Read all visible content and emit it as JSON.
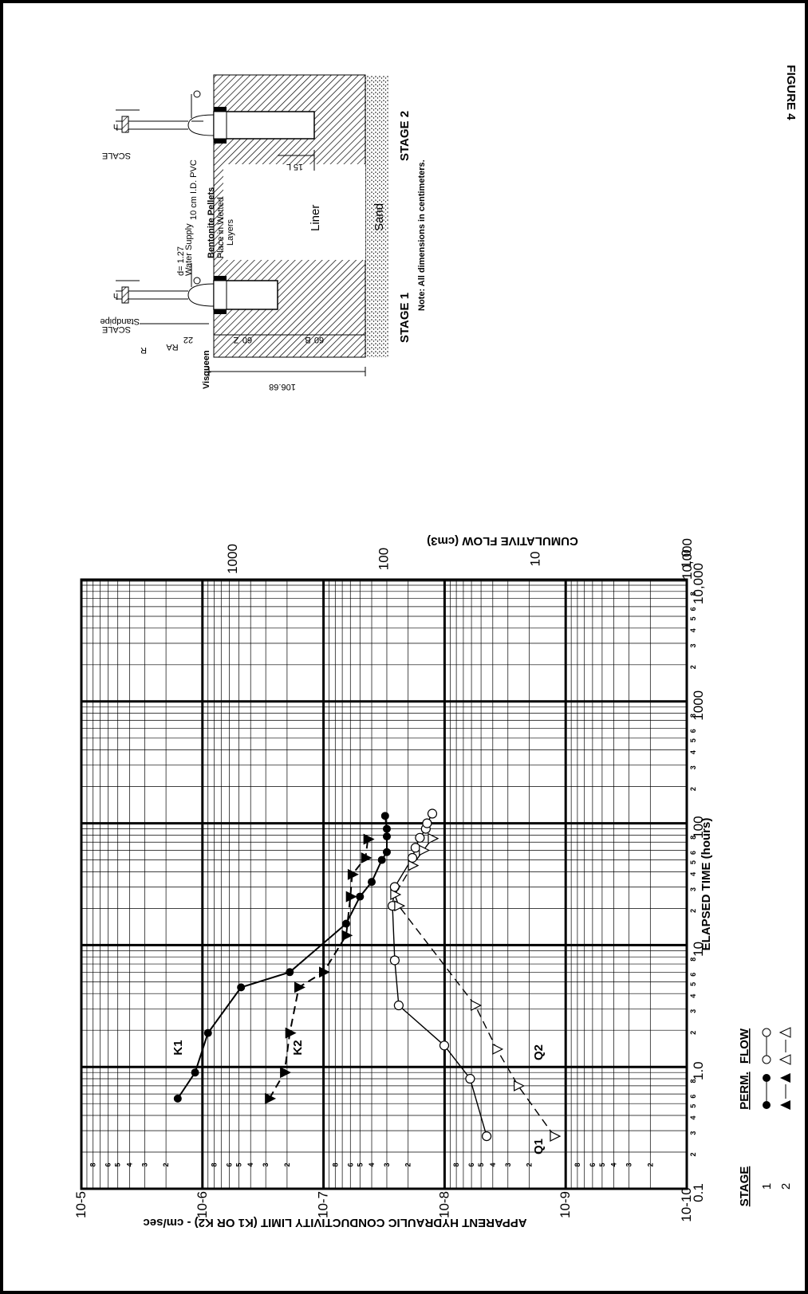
{
  "figure": {
    "label": "FIGURE 4",
    "legend": {
      "col_stage": "STAGE",
      "col_perm": "PERM.",
      "col_flow": "FLOW",
      "rows": [
        {
          "stage": "1",
          "perm_marker": "filled-circle-solid-line",
          "flow_marker": "open-circle-solid-line"
        },
        {
          "stage": "2",
          "perm_marker": "filled-triangle-dashed-line",
          "flow_marker": "open-triangle-dashed-line"
        }
      ]
    },
    "diagram": {
      "note": "Note:  All dimensions in centimeters.",
      "labels": {
        "visqueen": "Visqueen",
        "standpipe": "Standpipe",
        "scale": "SCALE",
        "water_supply": "Water Supply",
        "d": "d= 1.27",
        "bentonite": "Bentonite Pellets",
        "place_in": "Place in Wetted",
        "layers": "Layers",
        "pvc": "10 cm I.D. PVC",
        "liner": "Liner",
        "sand": "Sand",
        "stage1": "STAGE  1",
        "stage2": "STAGE  2",
        "dim_total": "106.68",
        "dim_22": "22",
        "dim_60a": "60",
        "dim_60b": "60",
        "dim_15": "15",
        "R": "R",
        "RA": "RA",
        "Z": "Z",
        "B": "B",
        "L": "L",
        "h": "h"
      }
    }
  },
  "chart_data": {
    "type": "scatter",
    "x_axis": {
      "label": "ELAPSED TIME (hours)",
      "scale": "log",
      "range": [
        0.1,
        10000
      ],
      "major_labels": [
        "0.1",
        "1.0",
        "10",
        "100",
        "1000",
        "10,000"
      ],
      "minor_labels": [
        "2",
        "3",
        "4",
        "5",
        "6",
        "8"
      ]
    },
    "y_axis": {
      "label": "APPARENT HYDRAULIC CONDUCTIVITY LIMIT  (K1 OR K2) - cm/sec",
      "scale": "log",
      "range": [
        1e-10,
        1e-05
      ],
      "major_labels": [
        "10-5",
        "10-6",
        "10-7",
        "10-8",
        "10-9",
        "10-10"
      ],
      "minor_labels": [
        "2",
        "3",
        "4",
        "5",
        "6",
        "8"
      ]
    },
    "y2_axis": {
      "label": "CUMULATIVE FLOW (cm3)",
      "scale": "log",
      "range": [
        1,
        10000
      ],
      "major_labels": [
        "1000",
        "100",
        "10",
        "1.0"
      ],
      "range_label": "10,000"
    },
    "grid": true,
    "series": [
      {
        "name": "K1",
        "axis": "y",
        "marker": "filled-circle",
        "line": "solid",
        "x": [
          0.55,
          0.9,
          1.9,
          4.5,
          6,
          15,
          25,
          33,
          50,
          58,
          78,
          90,
          115
        ],
        "y": [
          1.6e-06,
          1.15e-06,
          9e-07,
          4.8e-07,
          1.9e-07,
          6.5e-08,
          5e-08,
          4e-08,
          3.3e-08,
          3e-08,
          3e-08,
          3e-08,
          3.1e-08
        ]
      },
      {
        "name": "K2",
        "axis": "y",
        "marker": "filled-triangle",
        "line": "dashed",
        "x": [
          0.55,
          0.9,
          1.9,
          4.5,
          6,
          12,
          25,
          38,
          52,
          74
        ],
        "y": [
          2.8e-07,
          2.1e-07,
          1.9e-07,
          1.6e-07,
          1e-07,
          6.5e-08,
          6e-08,
          5.8e-08,
          4.5e-08,
          4.3e-08
        ]
      },
      {
        "name": "Q1",
        "axis": "y2",
        "marker": "open-circle",
        "line": "solid",
        "x": [
          0.27,
          0.8,
          1.5,
          3.2,
          7.5,
          21,
          30,
          52,
          63,
          76,
          90,
          100,
          120
        ],
        "y": [
          21,
          27,
          40,
          80,
          85,
          88,
          85,
          65,
          62,
          58,
          53,
          52,
          48
        ]
      },
      {
        "name": "Q2",
        "axis": "y2",
        "marker": "open-triangle",
        "line": "dashed",
        "x": [
          0.27,
          0.7,
          1.4,
          3.2,
          21,
          26,
          45,
          60,
          75
        ],
        "y": [
          7.5,
          13,
          18,
          25,
          80,
          85,
          65,
          55,
          48
        ]
      }
    ]
  }
}
